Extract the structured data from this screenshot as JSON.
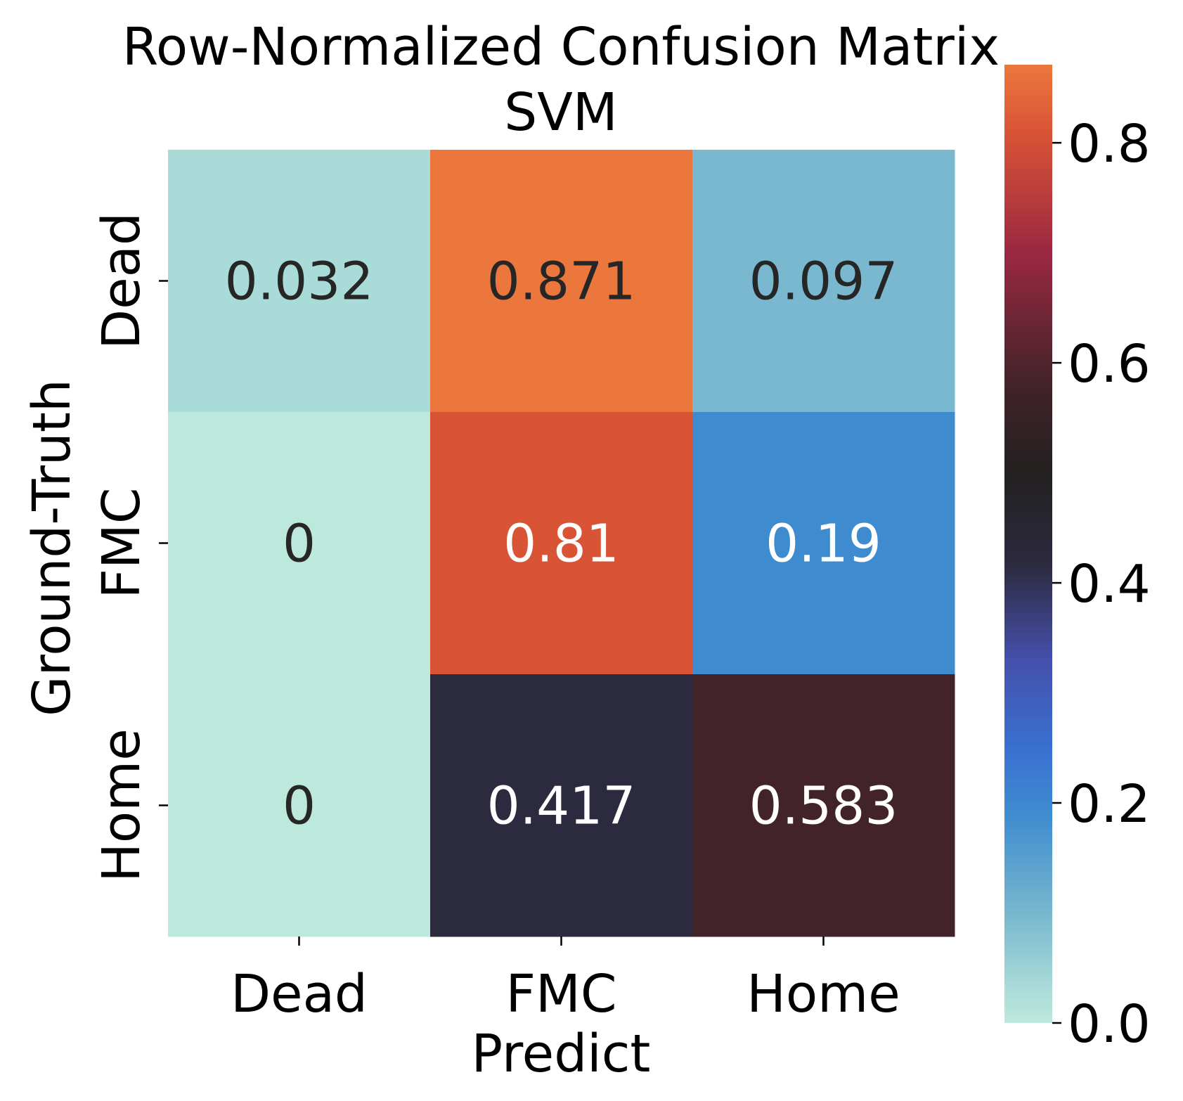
{
  "chart_data": {
    "type": "heatmap",
    "title": "Row-Normalized Confusion Matrix",
    "subtitle": "SVM",
    "xlabel": "Predict",
    "ylabel": "Ground-Truth",
    "x_categories": [
      "Dead",
      "FMC",
      "Home"
    ],
    "y_categories": [
      "Dead",
      "FMC",
      "Home"
    ],
    "values": [
      [
        0.032,
        0.871,
        0.097
      ],
      [
        0,
        0.81,
        0.19
      ],
      [
        0,
        0.417,
        0.583
      ]
    ],
    "cell_labels": [
      [
        "0.032",
        "0.871",
        "0.097"
      ],
      [
        "0",
        "0.81",
        "0.19"
      ],
      [
        "0",
        "0.417",
        "0.583"
      ]
    ],
    "colorbar": {
      "range": [
        0,
        0.871
      ],
      "ticks": [
        0.0,
        0.2,
        0.4,
        0.6,
        0.8
      ],
      "tick_labels": [
        "0.0",
        "0.2",
        "0.4",
        "0.6",
        "0.8"
      ],
      "colormap": "icefire",
      "color_stops": [
        {
          "v": 0.0,
          "color": "#bde8dc"
        },
        {
          "v": 0.032,
          "color": "#a9dbd8"
        },
        {
          "v": 0.097,
          "color": "#79b8ce"
        },
        {
          "v": 0.19,
          "color": "#3e8ccf"
        },
        {
          "v": 0.25,
          "color": "#3a70d0"
        },
        {
          "v": 0.33,
          "color": "#4550ab"
        },
        {
          "v": 0.417,
          "color": "#2c2a3f"
        },
        {
          "v": 0.5,
          "color": "#232020"
        },
        {
          "v": 0.583,
          "color": "#43232a"
        },
        {
          "v": 0.7,
          "color": "#9b2842"
        },
        {
          "v": 0.81,
          "color": "#d95435"
        },
        {
          "v": 0.871,
          "color": "#eb773d"
        }
      ]
    },
    "annotation_colors": {
      "dark": "#262626",
      "light": "#ffffff"
    }
  }
}
